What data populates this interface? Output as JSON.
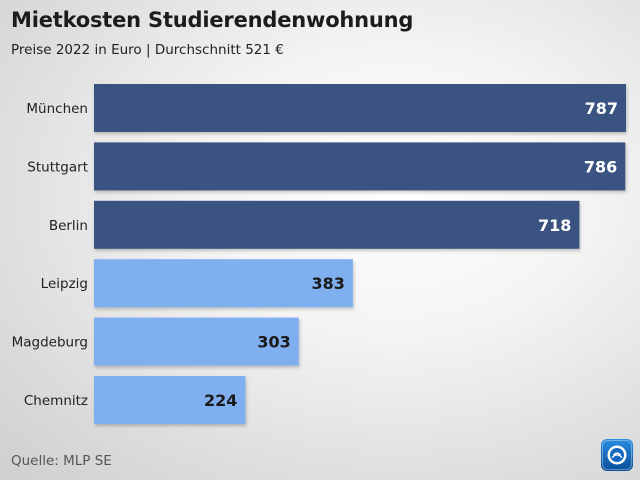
{
  "title": "Mietkosten Studierendenwohnung",
  "subtitle": "Preise 2022 in Euro | Durchschnitt 521 €",
  "source": "Quelle: MLP SE",
  "logo_icon": "broadcaster-logo-icon",
  "colors": {
    "dark_bar": "#3a5281",
    "light_bar": "#80aff0",
    "label_on_dark": "#ffffff",
    "label_on_light": "#1a1a1a",
    "category_text": "#222222"
  },
  "chart_data": {
    "type": "bar",
    "orientation": "horizontal",
    "categories": [
      "München",
      "Stuttgart",
      "Berlin",
      "Leipzig",
      "Magdeburg",
      "Chemnitz"
    ],
    "values": [
      787,
      786,
      718,
      383,
      303,
      224
    ],
    "value_labels": [
      "787",
      "786",
      "718",
      "383",
      "303",
      "224"
    ],
    "bar_color_groups": [
      "dark",
      "dark",
      "dark",
      "light",
      "light",
      "light"
    ],
    "xlim": [
      0,
      787
    ],
    "grid": false,
    "legend": "none"
  }
}
